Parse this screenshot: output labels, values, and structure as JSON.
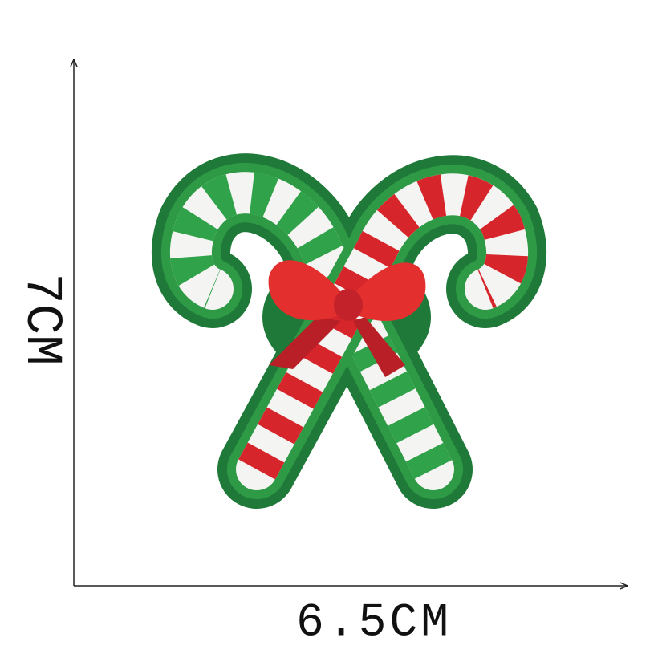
{
  "dimensions": {
    "height_label": "7CM",
    "width_label": "6.5CM"
  }
}
